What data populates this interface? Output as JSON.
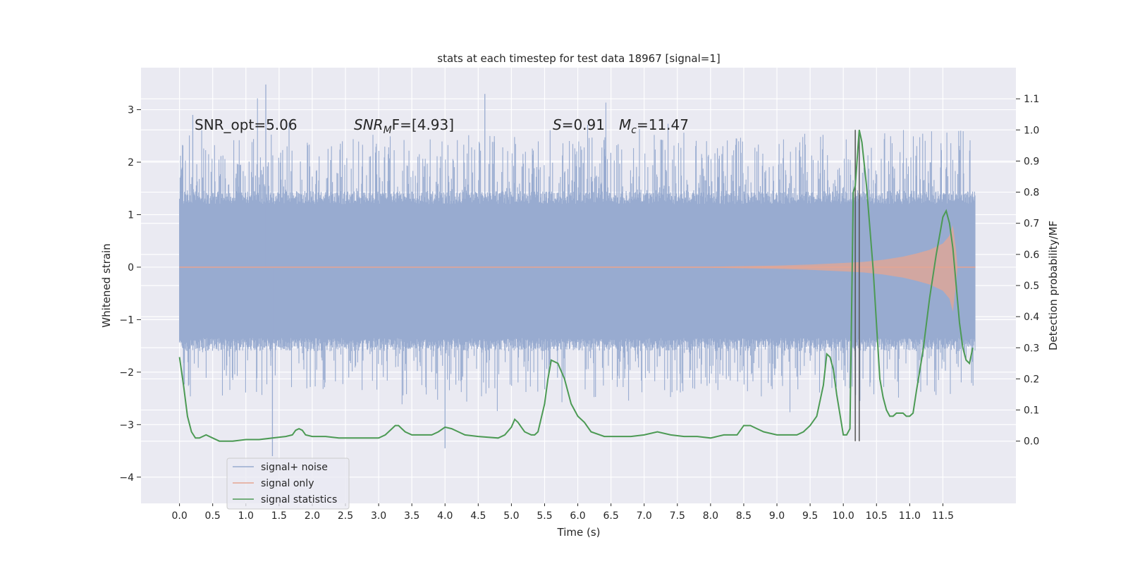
{
  "chart_data": {
    "type": "line",
    "title": "stats at each timestep for test data 18967 [signal=1]",
    "xlabel": "Time (s)",
    "ylabel_left": "Whitened strain",
    "ylabel_right": "Detection probability/MF",
    "xlim": [
      -0.58,
      12.6
    ],
    "ylim_left": [
      -4.5,
      3.8
    ],
    "ylim_right": [
      -0.2,
      1.2
    ],
    "x_ticks": [
      0.0,
      0.5,
      1.0,
      1.5,
      2.0,
      2.5,
      3.0,
      3.5,
      4.0,
      4.5,
      5.0,
      5.5,
      6.0,
      6.5,
      7.0,
      7.5,
      8.0,
      8.5,
      9.0,
      9.5,
      10.0,
      10.5,
      11.0,
      11.5
    ],
    "x_tick_labels": [
      "0.0",
      "0.5",
      "1.0",
      "1.5",
      "2.0",
      "2.5",
      "3.0",
      "3.5",
      "4.0",
      "4.5",
      "5.0",
      "5.5",
      "6.0",
      "6.5",
      "7.0",
      "7.5",
      "8.0",
      "8.5",
      "9.0",
      "9.5",
      "10.0",
      "10.5",
      "11.0",
      "11.5"
    ],
    "y_left_ticks": [
      -4,
      -3,
      -2,
      -1,
      0,
      1,
      2,
      3
    ],
    "y_left_tick_labels": [
      "−4",
      "−3",
      "−2",
      "−1",
      "0",
      "1",
      "2",
      "3"
    ],
    "y_right_ticks": [
      0.0,
      0.1,
      0.2,
      0.3,
      0.4,
      0.5,
      0.6,
      0.7,
      0.8,
      0.9,
      1.0,
      1.1
    ],
    "y_right_tick_labels": [
      "0.0",
      "0.1",
      "0.2",
      "0.3",
      "0.4",
      "0.5",
      "0.6",
      "0.7",
      "0.8",
      "0.9",
      "1.0",
      "1.1"
    ],
    "grid": true,
    "legend_position": "lower-left",
    "annotations": {
      "snr_opt": "SNR_opt=5.06",
      "snr_mf_sym": "SNR",
      "snr_mf_sub": "M",
      "snr_mf_rest": "F=[4.93]",
      "s_sym": "S",
      "s_val": "=0.91",
      "mc_sym": "M",
      "mc_sub": "c",
      "mc_val": "=11.47"
    },
    "vlines": [
      10.18,
      10.24
    ],
    "noise": {
      "name": "signal+ noise",
      "color": "#98abd0",
      "t_start": 0.0,
      "t_end": 11.99,
      "typical_range": [
        -1.6,
        1.45
      ],
      "max": 3.48,
      "min": -3.6
    },
    "signal_only": {
      "name": "signal only",
      "color": "#e5a592",
      "x": [
        0.0,
        8.0,
        9.0,
        9.5,
        10.0,
        10.3,
        10.6,
        10.9,
        11.1,
        11.3,
        11.5,
        11.6,
        11.65,
        11.7,
        11.72
      ],
      "lo": [
        0.0,
        -0.01,
        -0.03,
        -0.05,
        -0.08,
        -0.1,
        -0.14,
        -0.2,
        -0.26,
        -0.33,
        -0.45,
        -0.6,
        -0.85,
        -0.3,
        0.0
      ],
      "hi": [
        0.0,
        0.01,
        0.03,
        0.05,
        0.08,
        0.1,
        0.14,
        0.2,
        0.26,
        0.33,
        0.45,
        0.6,
        0.8,
        0.3,
        0.0
      ]
    },
    "series": [
      {
        "name": "signal statistics",
        "color": "#4c9a54",
        "axis": "right",
        "x": [
          0.0,
          0.06,
          0.12,
          0.18,
          0.24,
          0.3,
          0.4,
          0.5,
          0.6,
          0.8,
          1.0,
          1.2,
          1.4,
          1.6,
          1.7,
          1.75,
          1.8,
          1.85,
          1.9,
          2.0,
          2.2,
          2.4,
          2.6,
          2.8,
          3.0,
          3.1,
          3.2,
          3.25,
          3.3,
          3.35,
          3.4,
          3.5,
          3.6,
          3.7,
          3.8,
          3.9,
          4.0,
          4.1,
          4.2,
          4.3,
          4.5,
          4.8,
          4.9,
          5.0,
          5.05,
          5.1,
          5.15,
          5.2,
          5.3,
          5.35,
          5.4,
          5.5,
          5.55,
          5.6,
          5.7,
          5.8,
          5.9,
          6.0,
          6.1,
          6.2,
          6.4,
          6.6,
          6.8,
          7.0,
          7.2,
          7.4,
          7.6,
          7.8,
          8.0,
          8.2,
          8.4,
          8.5,
          8.6,
          8.7,
          8.8,
          9.0,
          9.2,
          9.3,
          9.4,
          9.5,
          9.6,
          9.7,
          9.75,
          9.8,
          9.85,
          9.9,
          10.0,
          10.05,
          10.1,
          10.15,
          10.18,
          10.2,
          10.24,
          10.28,
          10.35,
          10.45,
          10.55,
          10.6,
          10.65,
          10.7,
          10.75,
          10.8,
          10.85,
          10.9,
          10.95,
          11.0,
          11.05,
          11.1,
          11.2,
          11.3,
          11.4,
          11.5,
          11.55,
          11.6,
          11.65,
          11.7,
          11.75,
          11.8,
          11.85,
          11.9,
          11.95
        ],
        "values": [
          0.27,
          0.18,
          0.08,
          0.03,
          0.01,
          0.01,
          0.02,
          0.01,
          0.0,
          0.0,
          0.005,
          0.005,
          0.01,
          0.015,
          0.02,
          0.035,
          0.04,
          0.035,
          0.02,
          0.015,
          0.015,
          0.01,
          0.01,
          0.01,
          0.01,
          0.02,
          0.04,
          0.05,
          0.05,
          0.04,
          0.03,
          0.02,
          0.02,
          0.02,
          0.02,
          0.03,
          0.045,
          0.04,
          0.03,
          0.02,
          0.015,
          0.01,
          0.02,
          0.045,
          0.07,
          0.06,
          0.045,
          0.03,
          0.02,
          0.02,
          0.03,
          0.12,
          0.2,
          0.26,
          0.25,
          0.2,
          0.12,
          0.08,
          0.06,
          0.03,
          0.015,
          0.015,
          0.015,
          0.02,
          0.03,
          0.02,
          0.015,
          0.015,
          0.01,
          0.02,
          0.02,
          0.05,
          0.05,
          0.04,
          0.03,
          0.02,
          0.02,
          0.02,
          0.03,
          0.05,
          0.08,
          0.18,
          0.28,
          0.27,
          0.23,
          0.15,
          0.02,
          0.02,
          0.04,
          0.8,
          0.82,
          0.88,
          1.0,
          0.96,
          0.82,
          0.55,
          0.2,
          0.14,
          0.1,
          0.08,
          0.08,
          0.09,
          0.09,
          0.09,
          0.08,
          0.08,
          0.09,
          0.16,
          0.29,
          0.46,
          0.6,
          0.72,
          0.74,
          0.7,
          0.62,
          0.5,
          0.38,
          0.3,
          0.26,
          0.25,
          0.3
        ]
      }
    ]
  }
}
